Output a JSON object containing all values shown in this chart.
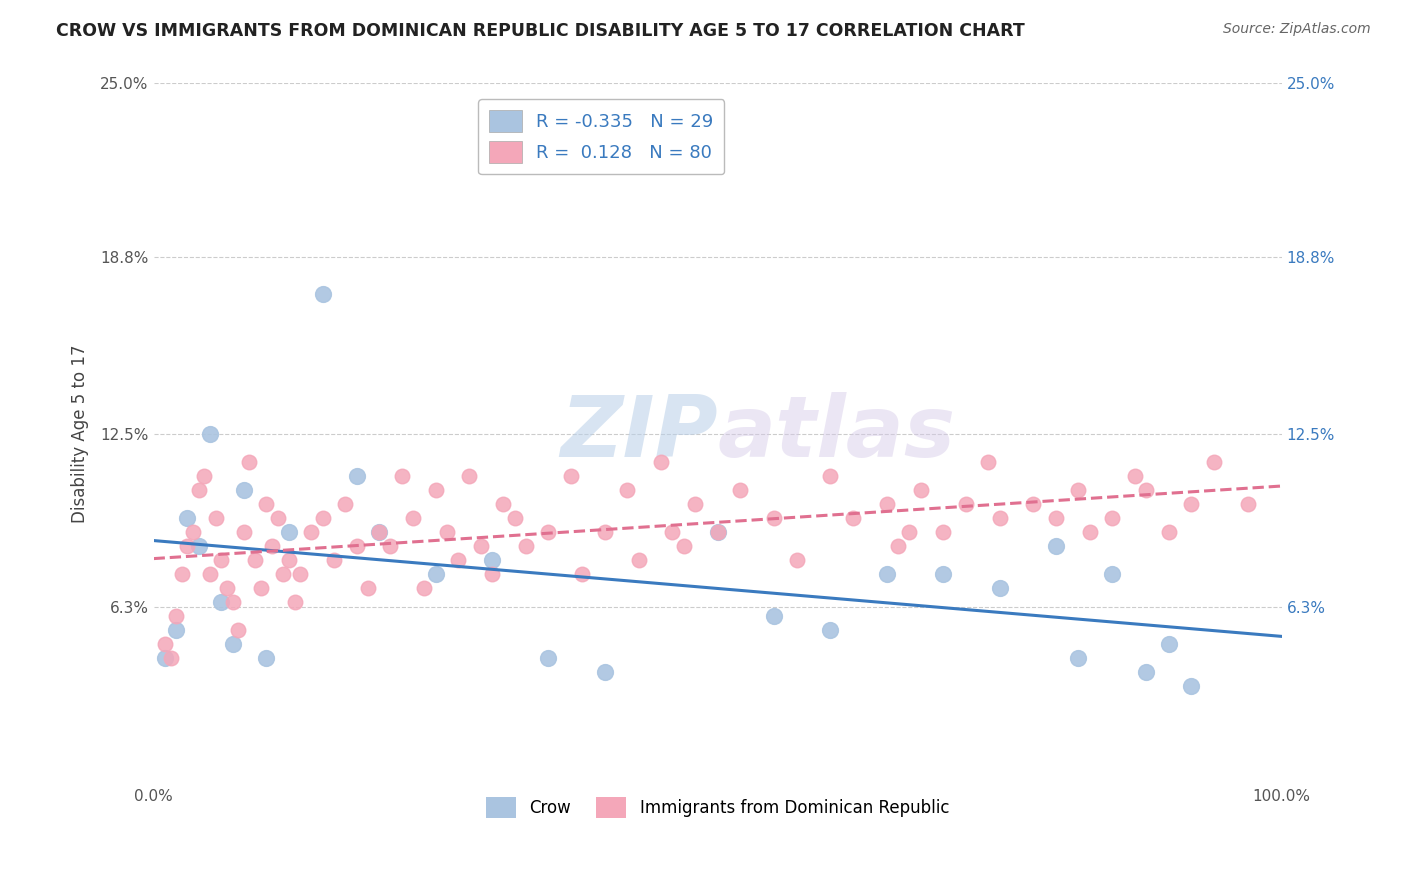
{
  "title": "CROW VS IMMIGRANTS FROM DOMINICAN REPUBLIC DISABILITY AGE 5 TO 17 CORRELATION CHART",
  "source": "Source: ZipAtlas.com",
  "ylabel": "Disability Age 5 to 17",
  "xlim": [
    0,
    100
  ],
  "ylim": [
    0,
    25
  ],
  "yticks": [
    0,
    6.3,
    12.5,
    18.8,
    25.0
  ],
  "ytick_labels": [
    "",
    "6.3%",
    "12.5%",
    "18.8%",
    "25.0%"
  ],
  "xtick_labels": [
    "0.0%",
    "100.0%"
  ],
  "legend_R1": "-0.335",
  "legend_N1": "29",
  "legend_R2": "0.128",
  "legend_N2": "80",
  "series1_color": "#aac4e0",
  "series2_color": "#f4a7b9",
  "line1_color": "#3a7abf",
  "line2_color": "#e07090",
  "watermark_zip": "ZIP",
  "watermark_atlas": "atlas",
  "background_color": "#ffffff",
  "crow_scatter_x": [
    1,
    2,
    3,
    4,
    5,
    6,
    7,
    8,
    10,
    12,
    15,
    18,
    20,
    25,
    30,
    35,
    40,
    50,
    55,
    60,
    65,
    70,
    75,
    80,
    82,
    85,
    88,
    90,
    92
  ],
  "crow_scatter_y": [
    4.5,
    5.5,
    9.5,
    8.5,
    12.5,
    6.5,
    5.0,
    10.5,
    4.5,
    9.0,
    17.5,
    11.0,
    9.0,
    7.5,
    8.0,
    4.5,
    4.0,
    9.0,
    6.0,
    5.5,
    7.5,
    7.5,
    7.0,
    8.5,
    4.5,
    7.5,
    4.0,
    5.0,
    3.5
  ],
  "imm_scatter_x": [
    1,
    1.5,
    2,
    2.5,
    3,
    3.5,
    4,
    4.5,
    5,
    5.5,
    6,
    6.5,
    7,
    7.5,
    8,
    8.5,
    9,
    9.5,
    10,
    10.5,
    11,
    11.5,
    12,
    12.5,
    13,
    14,
    15,
    16,
    17,
    18,
    19,
    20,
    21,
    22,
    23,
    24,
    25,
    26,
    27,
    28,
    29,
    30,
    31,
    32,
    33,
    35,
    37,
    38,
    40,
    42,
    43,
    45,
    46,
    47,
    48,
    50,
    52,
    55,
    57,
    60,
    62,
    65,
    66,
    67,
    68,
    70,
    72,
    74,
    75,
    78,
    80,
    82,
    83,
    85,
    87,
    88,
    90,
    92,
    94,
    97
  ],
  "imm_scatter_y": [
    5.0,
    4.5,
    6.0,
    7.5,
    8.5,
    9.0,
    10.5,
    11.0,
    7.5,
    9.5,
    8.0,
    7.0,
    6.5,
    5.5,
    9.0,
    11.5,
    8.0,
    7.0,
    10.0,
    8.5,
    9.5,
    7.5,
    8.0,
    6.5,
    7.5,
    9.0,
    9.5,
    8.0,
    10.0,
    8.5,
    7.0,
    9.0,
    8.5,
    11.0,
    9.5,
    7.0,
    10.5,
    9.0,
    8.0,
    11.0,
    8.5,
    7.5,
    10.0,
    9.5,
    8.5,
    9.0,
    11.0,
    7.5,
    9.0,
    10.5,
    8.0,
    11.5,
    9.0,
    8.5,
    10.0,
    9.0,
    10.5,
    9.5,
    8.0,
    11.0,
    9.5,
    10.0,
    8.5,
    9.0,
    10.5,
    9.0,
    10.0,
    11.5,
    9.5,
    10.0,
    9.5,
    10.5,
    9.0,
    9.5,
    11.0,
    10.5,
    9.0,
    10.0,
    11.5,
    10.0
  ]
}
